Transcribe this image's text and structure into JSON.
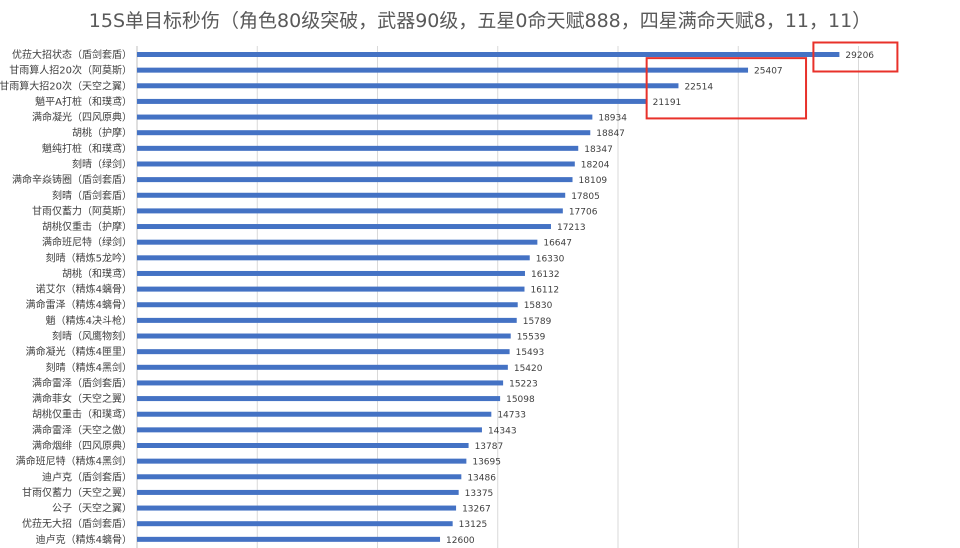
{
  "chart_data": {
    "type": "bar",
    "orientation": "horizontal",
    "title": "15S单目标秒伤（角色80级突破，武器90级，五星0命天赋888，四星满命天赋8，11，11）",
    "xlabel": "",
    "ylabel": "",
    "xlim": [
      0,
      30000
    ],
    "grid": true,
    "legend": "none",
    "bar_color": "#4472c4",
    "highlight_color": "#e8312a",
    "highlight_groups": [
      [
        0
      ],
      [
        1,
        2,
        3
      ]
    ],
    "categories": [
      "优菈大招状态（盾剑套盾）",
      "甘雨算人招20次（阿莫斯）",
      "甘雨算大招20次（天空之翼）",
      "魈平A打桩（和璞鸢）",
      "满命凝光（四风原典）",
      "胡桃（护摩）",
      "魈纯打桩（和璞鸢）",
      "刻晴（绿剑）",
      "满命辛焱铸圈（盾剑套盾）",
      "刻晴（盾剑套盾）",
      "甘雨仅蓄力（阿莫斯）",
      "胡桃仅重击（护摩）",
      "满命班尼特（绿剑）",
      "刻晴（精炼5龙吟）",
      "胡桃（和璞鸢）",
      "诺艾尔（精炼4螭骨）",
      "满命雷泽（精炼4螭骨）",
      "魈（精炼4决斗枪）",
      "刻晴（风鹰物刻）",
      "满命凝光（精炼4匣里）",
      "刻晴（精炼4黑剑）",
      "满命雷泽（盾剑套盾）",
      "满命菲女（天空之翼）",
      "胡桃仅重击（和璞鸢）",
      "满命雷泽（天空之傲）",
      "满命烟绯（四风原典）",
      "满命班尼特（精炼4黑剑）",
      "迪卢克（盾剑套盾）",
      "甘雨仅蓄力（天空之翼）",
      "公子（天空之翼）",
      "优菈无大招（盾剑套盾）",
      "迪卢克（精炼4螭骨）"
    ],
    "values": [
      29206,
      25407,
      22514,
      21191,
      18934,
      18847,
      18347,
      18204,
      18109,
      17805,
      17706,
      17213,
      16647,
      16330,
      16132,
      16112,
      15830,
      15789,
      15539,
      15493,
      15420,
      15223,
      15098,
      14733,
      14343,
      13787,
      13695,
      13486,
      13375,
      13267,
      13125,
      12600
    ]
  }
}
